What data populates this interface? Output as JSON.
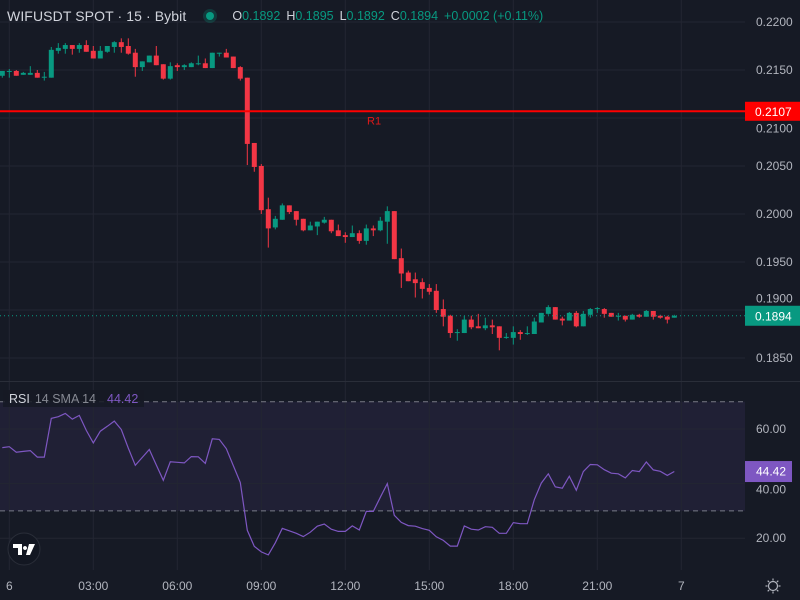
{
  "header": {
    "title": "WIFUSDT SPOT · 15 · Bybit",
    "status_color": "#089981",
    "ohlc": [
      {
        "key": "O",
        "value": "0.1892"
      },
      {
        "key": "H",
        "value": "0.1895"
      },
      {
        "key": "L",
        "value": "0.1892"
      },
      {
        "key": "C",
        "value": "0.1894"
      }
    ],
    "change": "+0.0002 (+0.11%)"
  },
  "rsi_legend": {
    "name": "RSI",
    "params": "14 SMA 14",
    "value": "44.42"
  },
  "colors": {
    "up": "#089981",
    "down": "#f23645",
    "rsi": "#7e57c2",
    "level": "#ff0000",
    "background": "#161a25",
    "grid": "#232632"
  },
  "icons": {
    "logo": "tradingview-logo-icon",
    "settings": "gear-icon"
  },
  "chart_data": [
    {
      "type": "candlestick",
      "symbol": "WIFUSDT SPOT",
      "interval": "15",
      "exchange": "Bybit",
      "y_ticks": [
        "0.2200",
        "0.2150",
        "0.2100",
        "0.2050",
        "0.2000",
        "0.1950",
        "0.1900",
        "0.1850"
      ],
      "ylim": [
        0.1826,
        0.2223
      ],
      "grid": true,
      "x_ticks": [
        "6",
        "03:00",
        "06:00",
        "09:00",
        "12:00",
        "15:00",
        "18:00",
        "21:00",
        "7"
      ],
      "levels": [
        {
          "label": "R1",
          "price": "0.2107"
        }
      ],
      "last_price": "0.1894",
      "candle_fields": [
        "time",
        "open",
        "high",
        "low",
        "close"
      ],
      "candles": [
        [
          "23:45",
          0.2144,
          0.2149,
          0.2142,
          0.2149
        ],
        [
          "00:00",
          0.2148,
          0.2151,
          0.2142,
          0.2149
        ],
        [
          "00:15",
          0.2149,
          0.215,
          0.2144,
          0.2144
        ],
        [
          "00:30",
          0.2145,
          0.2148,
          0.2145,
          0.2147
        ],
        [
          "00:45",
          0.2145,
          0.2154,
          0.2145,
          0.2147
        ],
        [
          "01:00",
          0.2147,
          0.215,
          0.2142,
          0.2142
        ],
        [
          "01:15",
          0.2142,
          0.2148,
          0.2139,
          0.2143
        ],
        [
          "01:30",
          0.2142,
          0.2174,
          0.2142,
          0.2171
        ],
        [
          "01:45",
          0.217,
          0.2178,
          0.2167,
          0.2173
        ],
        [
          "02:00",
          0.2172,
          0.2178,
          0.2167,
          0.2176
        ],
        [
          "02:15",
          0.2176,
          0.2176,
          0.2166,
          0.2172
        ],
        [
          "02:30",
          0.2172,
          0.2178,
          0.2168,
          0.2176
        ],
        [
          "02:45",
          0.2176,
          0.2181,
          0.2169,
          0.2169
        ],
        [
          "03:00",
          0.217,
          0.2175,
          0.2162,
          0.2162
        ],
        [
          "03:15",
          0.2162,
          0.2175,
          0.2162,
          0.217
        ],
        [
          "03:30",
          0.2169,
          0.2175,
          0.2168,
          0.2175
        ],
        [
          "03:45",
          0.2174,
          0.218,
          0.2168,
          0.2179
        ],
        [
          "04:00",
          0.2179,
          0.2183,
          0.2168,
          0.2174
        ],
        [
          "04:15",
          0.2175,
          0.2183,
          0.2166,
          0.2167
        ],
        [
          "04:30",
          0.2168,
          0.2172,
          0.2143,
          0.2153
        ],
        [
          "04:45",
          0.2153,
          0.2159,
          0.2149,
          0.2159
        ],
        [
          "05:00",
          0.2158,
          0.2165,
          0.2158,
          0.2165
        ],
        [
          "05:15",
          0.2165,
          0.2175,
          0.2155,
          0.2155
        ],
        [
          "05:30",
          0.2156,
          0.2156,
          0.214,
          0.2141
        ],
        [
          "05:45",
          0.2141,
          0.2158,
          0.214,
          0.2154
        ],
        [
          "06:00",
          0.2155,
          0.2157,
          0.2149,
          0.2153
        ],
        [
          "06:15",
          0.2153,
          0.2156,
          0.215,
          0.2155
        ],
        [
          "06:30",
          0.2153,
          0.2158,
          0.2153,
          0.2157
        ],
        [
          "06:45",
          0.2156,
          0.2165,
          0.2155,
          0.2157
        ],
        [
          "07:00",
          0.2157,
          0.2162,
          0.2152,
          0.2152
        ],
        [
          "07:15",
          0.2152,
          0.2168,
          0.2152,
          0.2168
        ],
        [
          "07:30",
          0.2167,
          0.2168,
          0.2164,
          0.2168
        ],
        [
          "07:45",
          0.2168,
          0.2172,
          0.2163,
          0.2163
        ],
        [
          "08:00",
          0.2164,
          0.2164,
          0.2152,
          0.2152
        ],
        [
          "08:15",
          0.2153,
          0.2154,
          0.2139,
          0.2141
        ],
        [
          "08:30",
          0.2142,
          0.2142,
          0.2051,
          0.2073
        ],
        [
          "08:45",
          0.2074,
          0.2074,
          0.2044,
          0.2049
        ],
        [
          "09:00",
          0.205,
          0.2052,
          0.2,
          0.2004
        ],
        [
          "09:15",
          0.2005,
          0.2017,
          0.1965,
          0.1985
        ],
        [
          "09:30",
          0.1986,
          0.1998,
          0.1984,
          0.1995
        ],
        [
          "09:45",
          0.1994,
          0.2011,
          0.1994,
          0.2009
        ],
        [
          "10:00",
          0.2009,
          0.2009,
          0.2,
          0.2002
        ],
        [
          "10:15",
          0.2003,
          0.2003,
          0.1988,
          0.1994
        ],
        [
          "10:30",
          0.1995,
          0.1995,
          0.1982,
          0.1983
        ],
        [
          "10:45",
          0.1983,
          0.1992,
          0.1983,
          0.1988
        ],
        [
          "11:00",
          0.1987,
          0.1992,
          0.1978,
          0.1992
        ],
        [
          "11:15",
          0.1991,
          0.1997,
          0.199,
          0.1994
        ],
        [
          "11:30",
          0.1994,
          0.1994,
          0.198,
          0.1982
        ],
        [
          "11:45",
          0.1983,
          0.1989,
          0.1977,
          0.1977
        ],
        [
          "12:00",
          0.1978,
          0.1981,
          0.197,
          0.1976
        ],
        [
          "12:15",
          0.1976,
          0.1988,
          0.1976,
          0.198
        ],
        [
          "12:30",
          0.198,
          0.1983,
          0.1969,
          0.1972
        ],
        [
          "12:45",
          0.1972,
          0.1989,
          0.1968,
          0.1985
        ],
        [
          "13:00",
          0.1985,
          0.1988,
          0.1977,
          0.1983
        ],
        [
          "13:15",
          0.1983,
          0.1997,
          0.1982,
          0.1993
        ],
        [
          "13:30",
          0.1992,
          0.2008,
          0.1969,
          0.2003
        ],
        [
          "13:45",
          0.2003,
          0.2003,
          0.1953,
          0.1953
        ],
        [
          "14:00",
          0.1954,
          0.1964,
          0.1923,
          0.1938
        ],
        [
          "14:15",
          0.1939,
          0.1941,
          0.193,
          0.193
        ],
        [
          "14:30",
          0.1932,
          0.1939,
          0.1913,
          0.1928
        ],
        [
          "14:45",
          0.1929,
          0.1933,
          0.1912,
          0.1922
        ],
        [
          "15:00",
          0.1923,
          0.1927,
          0.1916,
          0.1919
        ],
        [
          "15:15",
          0.192,
          0.1927,
          0.1897,
          0.19
        ],
        [
          "15:30",
          0.1901,
          0.1911,
          0.1883,
          0.1893
        ],
        [
          "15:45",
          0.1894,
          0.1895,
          0.1871,
          0.1876
        ],
        [
          "16:00",
          0.1876,
          0.188,
          0.1868,
          0.1877
        ],
        [
          "16:15",
          0.1876,
          0.1894,
          0.1876,
          0.189
        ],
        [
          "16:30",
          0.189,
          0.1894,
          0.188,
          0.1882
        ],
        [
          "16:45",
          0.1883,
          0.1896,
          0.1881,
          0.1881
        ],
        [
          "17:00",
          0.1881,
          0.1892,
          0.1879,
          0.1884
        ],
        [
          "17:15",
          0.1884,
          0.189,
          0.1875,
          0.1882
        ],
        [
          "17:30",
          0.1883,
          0.1883,
          0.1858,
          0.1871
        ],
        [
          "17:45",
          0.1871,
          0.1876,
          0.187,
          0.1872
        ],
        [
          "18:00",
          0.1871,
          0.1883,
          0.1864,
          0.1877
        ],
        [
          "18:15",
          0.1877,
          0.1879,
          0.1869,
          0.1875
        ],
        [
          "18:30",
          0.1875,
          0.1883,
          0.1874,
          0.1876
        ],
        [
          "18:45",
          0.1875,
          0.1892,
          0.1875,
          0.1888
        ],
        [
          "19:00",
          0.1887,
          0.1897,
          0.1887,
          0.1897
        ],
        [
          "19:15",
          0.1896,
          0.1905,
          0.1895,
          0.1903
        ],
        [
          "19:30",
          0.1903,
          0.1903,
          0.189,
          0.189
        ],
        [
          "19:45",
          0.1891,
          0.1893,
          0.1884,
          0.1889
        ],
        [
          "20:00",
          0.1889,
          0.1898,
          0.1889,
          0.1897
        ],
        [
          "20:15",
          0.1897,
          0.1899,
          0.1882,
          0.1883
        ],
        [
          "20:30",
          0.1883,
          0.1899,
          0.1883,
          0.1896
        ],
        [
          "20:45",
          0.1895,
          0.1902,
          0.1892,
          0.1901
        ],
        [
          "21:00",
          0.1901,
          0.1903,
          0.1897,
          0.1902
        ],
        [
          "21:15",
          0.1901,
          0.1902,
          0.1892,
          0.1896
        ],
        [
          "21:30",
          0.1897,
          0.1897,
          0.1893,
          0.1893
        ],
        [
          "21:45",
          0.1893,
          0.1897,
          0.1889,
          0.1894
        ],
        [
          "22:00",
          0.1894,
          0.1894,
          0.1888,
          0.189
        ],
        [
          "22:15",
          0.189,
          0.1896,
          0.189,
          0.1895
        ],
        [
          "22:30",
          0.1895,
          0.1896,
          0.1892,
          0.1893
        ],
        [
          "22:45",
          0.1893,
          0.19,
          0.1893,
          0.1899
        ],
        [
          "23:00",
          0.1899,
          0.1899,
          0.189,
          0.1893
        ],
        [
          "23:15",
          0.1894,
          0.1895,
          0.1891,
          0.1892
        ],
        [
          "23:30",
          0.1893,
          0.1894,
          0.1886,
          0.189
        ],
        [
          "23:45",
          0.1892,
          0.1895,
          0.1892,
          0.1894
        ]
      ]
    },
    {
      "type": "line",
      "name": "RSI",
      "params": "14 SMA 14",
      "y_ticks": [
        "60.00",
        "40.00",
        "20.00"
      ],
      "ylim": [
        8,
        77
      ],
      "bands": {
        "upper": 70,
        "lower": 30
      },
      "last_value": "44.42",
      "values": [
        53.2,
        53.5,
        51.5,
        51.8,
        52.1,
        49.7,
        49.7,
        63.9,
        64.5,
        65.7,
        63.6,
        65.0,
        59.5,
        54.9,
        59.2,
        61.0,
        62.9,
        59.8,
        53.0,
        46.7,
        49.6,
        52.5,
        46.8,
        41.2,
        48.0,
        47.8,
        47.6,
        49.9,
        49.8,
        47.4,
        56.4,
        56.2,
        52.8,
        46.6,
        40.4,
        22.9,
        17.0,
        15.0,
        13.9,
        18.3,
        23.6,
        22.7,
        21.8,
        20.6,
        22.2,
        24.4,
        25.2,
        23.3,
        22.5,
        22.5,
        24.5,
        23.0,
        29.8,
        29.8,
        35.0,
        40.0,
        28.4,
        25.8,
        24.6,
        24.4,
        23.5,
        22.9,
        20.5,
        19.2,
        17.1,
        17.1,
        24.5,
        23.3,
        23.0,
        24.2,
        24.0,
        21.8,
        21.8,
        25.7,
        25.3,
        25.3,
        34.1,
        40.2,
        43.6,
        38.8,
        38.3,
        42.7,
        37.6,
        44.4,
        47.0,
        46.9,
        45.1,
        43.8,
        43.6,
        42.1,
        44.8,
        44.4,
        47.9,
        45.0,
        44.5,
        43.0,
        44.42
      ]
    }
  ]
}
